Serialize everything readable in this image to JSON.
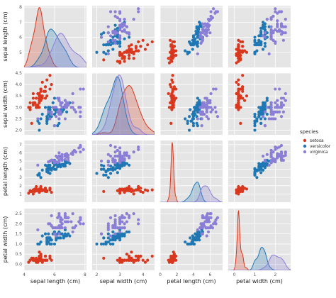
{
  "chart_data": {
    "type": "scatter",
    "variables": [
      "sepal length (cm)",
      "sepal width (cm)",
      "petal length (cm)",
      "petal width (cm)"
    ],
    "grid": true,
    "legend_position": "right",
    "legend": {
      "title": "species",
      "entries": [
        "setosa",
        "versicolor",
        "virginica"
      ]
    },
    "colors": {
      "setosa": "#d9381e",
      "versicolor": "#1f77b4",
      "virginica": "#8a7ed6",
      "panel_bg": "#e5e5e5",
      "grid": "#ffffff"
    },
    "ranges": {
      "sepal length (cm)": [
        4.0,
        8.1
      ],
      "sepal width (cm)": [
        1.8,
        4.5
      ],
      "petal length (cm)": [
        0.0,
        7.5
      ],
      "petal width (cm)": [
        -0.3,
        2.75
      ]
    },
    "ticks": {
      "sepal length (cm)": [
        4,
        6,
        8
      ],
      "sepal width (cm)": [
        2,
        3,
        4,
        5
      ],
      "petal length (cm)": [
        0,
        2,
        4,
        6
      ],
      "petal width (cm)": [
        0,
        1,
        2,
        3
      ]
    },
    "ytick_labels": {
      "sepal length (cm)": [
        "5",
        "6",
        "7",
        "8"
      ],
      "sepal width (cm)": [
        "2.0",
        "2.5",
        "3.0",
        "3.5",
        "4.0",
        "4.5"
      ],
      "petal length (cm)": [
        "1",
        "2",
        "3",
        "4",
        "5",
        "6",
        "7"
      ],
      "petal width (cm)": [
        "0.0",
        "0.5",
        "1.0",
        "1.5",
        "2.0",
        "2.5"
      ]
    },
    "ytick_values": {
      "sepal length (cm)": [
        5,
        6,
        7,
        8
      ],
      "sepal width (cm)": [
        2.0,
        2.5,
        3.0,
        3.5,
        4.0,
        4.5
      ],
      "petal length (cm)": [
        1,
        2,
        3,
        4,
        5,
        6,
        7
      ],
      "petal width (cm)": [
        0.0,
        0.5,
        1.0,
        1.5,
        2.0,
        2.5
      ]
    },
    "species": [
      {
        "name": "setosa",
        "points": [
          [
            5.1,
            3.5,
            1.4,
            0.2
          ],
          [
            4.9,
            3.0,
            1.4,
            0.2
          ],
          [
            4.7,
            3.2,
            1.3,
            0.2
          ],
          [
            4.6,
            3.1,
            1.5,
            0.2
          ],
          [
            5.0,
            3.6,
            1.4,
            0.2
          ],
          [
            5.4,
            3.9,
            1.7,
            0.4
          ],
          [
            4.6,
            3.4,
            1.4,
            0.3
          ],
          [
            5.0,
            3.4,
            1.5,
            0.2
          ],
          [
            4.4,
            2.9,
            1.4,
            0.2
          ],
          [
            4.9,
            3.1,
            1.5,
            0.1
          ],
          [
            5.4,
            3.7,
            1.5,
            0.2
          ],
          [
            4.8,
            3.4,
            1.6,
            0.2
          ],
          [
            4.8,
            3.0,
            1.4,
            0.1
          ],
          [
            4.3,
            3.0,
            1.1,
            0.1
          ],
          [
            5.8,
            4.0,
            1.2,
            0.2
          ],
          [
            5.7,
            4.4,
            1.5,
            0.4
          ],
          [
            5.4,
            3.9,
            1.3,
            0.4
          ],
          [
            5.1,
            3.5,
            1.4,
            0.3
          ],
          [
            5.7,
            3.8,
            1.7,
            0.3
          ],
          [
            5.1,
            3.8,
            1.5,
            0.3
          ],
          [
            5.4,
            3.4,
            1.7,
            0.2
          ],
          [
            5.1,
            3.7,
            1.5,
            0.4
          ],
          [
            4.6,
            3.6,
            1.0,
            0.2
          ],
          [
            5.1,
            3.3,
            1.7,
            0.5
          ],
          [
            4.8,
            3.4,
            1.9,
            0.2
          ],
          [
            5.0,
            3.0,
            1.6,
            0.2
          ],
          [
            5.0,
            3.4,
            1.6,
            0.4
          ],
          [
            5.2,
            3.5,
            1.5,
            0.2
          ],
          [
            5.2,
            3.4,
            1.4,
            0.2
          ],
          [
            4.7,
            3.2,
            1.6,
            0.2
          ],
          [
            4.8,
            3.1,
            1.6,
            0.2
          ],
          [
            5.4,
            3.4,
            1.5,
            0.4
          ],
          [
            5.2,
            4.1,
            1.5,
            0.1
          ],
          [
            5.5,
            4.2,
            1.4,
            0.2
          ],
          [
            4.9,
            3.1,
            1.5,
            0.2
          ],
          [
            5.0,
            3.2,
            1.2,
            0.2
          ],
          [
            5.5,
            3.5,
            1.3,
            0.2
          ],
          [
            4.9,
            3.6,
            1.4,
            0.1
          ],
          [
            4.4,
            3.0,
            1.3,
            0.2
          ],
          [
            5.1,
            3.4,
            1.5,
            0.2
          ],
          [
            5.0,
            3.5,
            1.3,
            0.3
          ],
          [
            4.5,
            2.3,
            1.3,
            0.3
          ],
          [
            4.4,
            3.2,
            1.3,
            0.2
          ],
          [
            5.0,
            3.5,
            1.6,
            0.6
          ],
          [
            5.1,
            3.8,
            1.9,
            0.4
          ],
          [
            4.8,
            3.0,
            1.4,
            0.3
          ],
          [
            5.1,
            3.8,
            1.6,
            0.2
          ],
          [
            4.6,
            3.2,
            1.4,
            0.2
          ],
          [
            5.3,
            3.7,
            1.5,
            0.2
          ],
          [
            5.0,
            3.3,
            1.4,
            0.2
          ]
        ]
      },
      {
        "name": "versicolor",
        "points": [
          [
            7.0,
            3.2,
            4.7,
            1.4
          ],
          [
            6.4,
            3.2,
            4.5,
            1.5
          ],
          [
            6.9,
            3.1,
            4.9,
            1.5
          ],
          [
            5.5,
            2.3,
            4.0,
            1.3
          ],
          [
            6.5,
            2.8,
            4.6,
            1.5
          ],
          [
            5.7,
            2.8,
            4.5,
            1.3
          ],
          [
            6.3,
            3.3,
            4.7,
            1.6
          ],
          [
            4.9,
            2.4,
            3.3,
            1.0
          ],
          [
            6.6,
            2.9,
            4.6,
            1.3
          ],
          [
            5.2,
            2.7,
            3.9,
            1.4
          ],
          [
            5.0,
            2.0,
            3.5,
            1.0
          ],
          [
            5.9,
            3.0,
            4.2,
            1.5
          ],
          [
            6.0,
            2.2,
            4.0,
            1.0
          ],
          [
            6.1,
            2.9,
            4.7,
            1.4
          ],
          [
            5.6,
            2.9,
            3.6,
            1.3
          ],
          [
            6.7,
            3.1,
            4.4,
            1.4
          ],
          [
            5.6,
            3.0,
            4.5,
            1.5
          ],
          [
            5.8,
            2.7,
            4.1,
            1.0
          ],
          [
            6.2,
            2.2,
            4.5,
            1.5
          ],
          [
            5.6,
            2.5,
            3.9,
            1.1
          ],
          [
            5.9,
            3.2,
            4.8,
            1.8
          ],
          [
            6.1,
            2.8,
            4.0,
            1.3
          ],
          [
            6.3,
            2.5,
            4.9,
            1.5
          ],
          [
            6.1,
            2.8,
            4.7,
            1.2
          ],
          [
            6.4,
            2.9,
            4.3,
            1.3
          ],
          [
            6.6,
            3.0,
            4.4,
            1.4
          ],
          [
            6.8,
            2.8,
            4.8,
            1.4
          ],
          [
            6.7,
            3.0,
            5.0,
            1.7
          ],
          [
            6.0,
            2.9,
            4.5,
            1.5
          ],
          [
            5.7,
            2.6,
            3.5,
            1.0
          ],
          [
            5.5,
            2.4,
            3.8,
            1.1
          ],
          [
            5.5,
            2.4,
            3.7,
            1.0
          ],
          [
            5.8,
            2.7,
            3.9,
            1.2
          ],
          [
            6.0,
            2.7,
            5.1,
            1.6
          ],
          [
            5.4,
            3.0,
            4.5,
            1.5
          ],
          [
            6.0,
            3.4,
            4.5,
            1.6
          ],
          [
            6.7,
            3.1,
            4.7,
            1.5
          ],
          [
            6.3,
            2.3,
            4.4,
            1.3
          ],
          [
            5.6,
            3.0,
            4.1,
            1.3
          ],
          [
            5.5,
            2.5,
            4.0,
            1.3
          ],
          [
            5.5,
            2.6,
            4.4,
            1.2
          ],
          [
            6.1,
            3.0,
            4.6,
            1.4
          ],
          [
            5.8,
            2.6,
            4.0,
            1.2
          ],
          [
            5.0,
            2.3,
            3.3,
            1.0
          ],
          [
            5.6,
            2.7,
            4.2,
            1.3
          ],
          [
            5.7,
            3.0,
            4.2,
            1.2
          ],
          [
            5.7,
            2.9,
            4.2,
            1.3
          ],
          [
            6.2,
            2.9,
            4.3,
            1.3
          ],
          [
            5.1,
            2.5,
            3.0,
            1.1
          ],
          [
            5.7,
            2.8,
            4.1,
            1.3
          ]
        ]
      },
      {
        "name": "virginica",
        "points": [
          [
            6.3,
            3.3,
            6.0,
            2.5
          ],
          [
            5.8,
            2.7,
            5.1,
            1.9
          ],
          [
            7.1,
            3.0,
            5.9,
            2.1
          ],
          [
            6.3,
            2.9,
            5.6,
            1.8
          ],
          [
            6.5,
            3.0,
            5.8,
            2.2
          ],
          [
            7.6,
            3.0,
            6.6,
            2.1
          ],
          [
            4.9,
            2.5,
            4.5,
            1.7
          ],
          [
            7.3,
            2.9,
            6.3,
            1.8
          ],
          [
            6.7,
            2.5,
            5.8,
            1.8
          ],
          [
            7.2,
            3.6,
            6.1,
            2.5
          ],
          [
            6.5,
            3.2,
            5.1,
            2.0
          ],
          [
            6.4,
            2.7,
            5.3,
            1.9
          ],
          [
            6.8,
            3.0,
            5.5,
            2.1
          ],
          [
            5.7,
            2.5,
            5.0,
            2.0
          ],
          [
            5.8,
            2.8,
            5.1,
            2.4
          ],
          [
            6.4,
            3.2,
            5.3,
            2.3
          ],
          [
            6.5,
            3.0,
            5.5,
            1.8
          ],
          [
            7.7,
            3.8,
            6.7,
            2.2
          ],
          [
            7.7,
            2.6,
            6.9,
            2.3
          ],
          [
            6.0,
            2.2,
            5.0,
            1.5
          ],
          [
            6.9,
            3.2,
            5.7,
            2.3
          ],
          [
            5.6,
            2.8,
            4.9,
            2.0
          ],
          [
            7.7,
            2.8,
            6.7,
            2.0
          ],
          [
            6.3,
            2.7,
            4.9,
            1.8
          ],
          [
            6.7,
            3.3,
            5.7,
            2.1
          ],
          [
            7.2,
            3.2,
            6.0,
            1.8
          ],
          [
            6.2,
            2.8,
            4.8,
            1.8
          ],
          [
            6.1,
            3.0,
            4.9,
            1.8
          ],
          [
            6.4,
            2.8,
            5.6,
            2.1
          ],
          [
            7.2,
            3.0,
            5.8,
            1.6
          ],
          [
            7.4,
            2.8,
            6.1,
            1.9
          ],
          [
            7.9,
            3.8,
            6.4,
            2.0
          ],
          [
            6.4,
            2.8,
            5.6,
            2.2
          ],
          [
            6.3,
            2.8,
            5.1,
            1.5
          ],
          [
            6.1,
            2.6,
            5.6,
            1.4
          ],
          [
            7.7,
            3.0,
            6.1,
            2.3
          ],
          [
            6.3,
            3.4,
            5.6,
            2.4
          ],
          [
            6.4,
            3.1,
            5.5,
            1.8
          ],
          [
            6.0,
            3.0,
            4.8,
            1.8
          ],
          [
            6.9,
            3.1,
            5.4,
            2.1
          ],
          [
            6.7,
            3.1,
            5.6,
            2.4
          ],
          [
            6.9,
            3.1,
            5.1,
            2.3
          ],
          [
            5.8,
            2.7,
            5.1,
            1.9
          ],
          [
            6.8,
            3.2,
            5.9,
            2.3
          ],
          [
            6.7,
            3.3,
            5.7,
            2.5
          ],
          [
            6.7,
            3.0,
            5.2,
            2.3
          ],
          [
            6.3,
            2.5,
            5.0,
            1.9
          ],
          [
            6.5,
            3.0,
            5.2,
            2.0
          ],
          [
            6.2,
            3.4,
            5.4,
            2.3
          ],
          [
            5.9,
            3.0,
            5.1,
            1.8
          ]
        ]
      }
    ]
  }
}
